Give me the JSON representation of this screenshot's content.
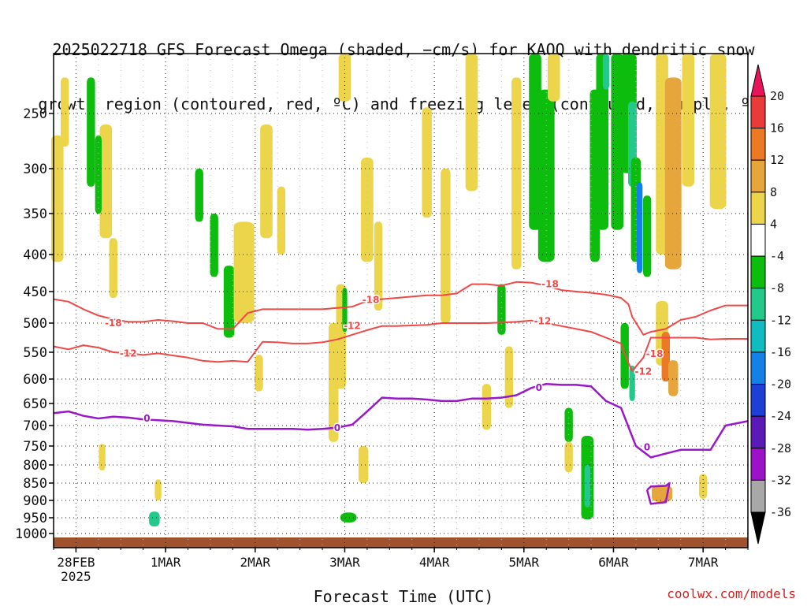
{
  "title": {
    "line1": "2025022718 GFS Forecast Omega (shaded, −cm/s) for KAQQ with dendritic snow",
    "line2": "growth region (contoured, red, ºC) and freezing level (contoured, purple, ºC)"
  },
  "watermark": "coolwx.com/models",
  "chart_data": {
    "type": "heatmap",
    "xlabel": "Forecast Time (UTC)",
    "ylabel": "",
    "x_ticks": [
      {
        "label": "28FEB",
        "sub": "2025",
        "hours": 6
      },
      {
        "label": "1MAR",
        "sub": "",
        "hours": 30
      },
      {
        "label": "2MAR",
        "sub": "",
        "hours": 54
      },
      {
        "label": "3MAR",
        "sub": "",
        "hours": 78
      },
      {
        "label": "4MAR",
        "sub": "",
        "hours": 102
      },
      {
        "label": "5MAR",
        "sub": "",
        "hours": 126
      },
      {
        "label": "6MAR",
        "sub": "",
        "hours": 150
      },
      {
        "label": "7MAR",
        "sub": "",
        "hours": 174
      }
    ],
    "xlim_hours": [
      0,
      186
    ],
    "y_axis": "pressure (hPa), decreasing upward",
    "y_ticks": [
      250,
      300,
      350,
      400,
      450,
      500,
      550,
      600,
      650,
      700,
      750,
      800,
      850,
      900,
      950,
      1000
    ],
    "ylim": [
      1020,
      200
    ],
    "grid": true,
    "colorbar": {
      "labels": [
        20,
        16,
        12,
        8,
        4,
        -4,
        -8,
        -12,
        -16,
        -20,
        -24,
        -28,
        -32,
        -36
      ],
      "colors": [
        "#e8135a",
        "#e93b3a",
        "#ec7a25",
        "#e6a63c",
        "#ecd54a",
        "#ffffff",
        "#0dbd0d",
        "#23c98a",
        "#11bcc0",
        "#1580e8",
        "#1d3fd6",
        "#5b1ab8",
        "#9b12c8",
        "#a8a8a8",
        "#000000"
      ]
    },
    "omega_blobs": [
      {
        "t": 1,
        "p": 340,
        "dt": 1.5,
        "dp": 140,
        "v": 6
      },
      {
        "t": 3,
        "p": 250,
        "dt": 1,
        "dp": 60,
        "v": 5
      },
      {
        "t": 10,
        "p": 270,
        "dt": 1,
        "dp": 100,
        "v": -6
      },
      {
        "t": 14,
        "p": 320,
        "dt": 1.5,
        "dp": 120,
        "v": 5
      },
      {
        "t": 16,
        "p": 420,
        "dt": 1,
        "dp": 80,
        "v": 5
      },
      {
        "t": 12,
        "p": 310,
        "dt": 0.8,
        "dp": 80,
        "v": -8
      },
      {
        "t": 13,
        "p": 780,
        "dt": 0.8,
        "dp": 70,
        "v": 5
      },
      {
        "t": 27,
        "p": 955,
        "dt": 1.3,
        "dp": 45,
        "v": -12
      },
      {
        "t": 28,
        "p": 870,
        "dt": 0.8,
        "dp": 60,
        "v": 5
      },
      {
        "t": 39,
        "p": 330,
        "dt": 1,
        "dp": 60,
        "v": -6
      },
      {
        "t": 43,
        "p": 390,
        "dt": 1,
        "dp": 80,
        "v": -5
      },
      {
        "t": 47,
        "p": 470,
        "dt": 1.3,
        "dp": 110,
        "v": -7
      },
      {
        "t": 51,
        "p": 430,
        "dt": 2.5,
        "dp": 140,
        "v": 6
      },
      {
        "t": 57,
        "p": 320,
        "dt": 1.5,
        "dp": 120,
        "v": 5
      },
      {
        "t": 61,
        "p": 360,
        "dt": 1,
        "dp": 80,
        "v": 5
      },
      {
        "t": 55,
        "p": 590,
        "dt": 1,
        "dp": 70,
        "v": 5
      },
      {
        "t": 75,
        "p": 620,
        "dt": 1.2,
        "dp": 240,
        "v": 6
      },
      {
        "t": 77,
        "p": 530,
        "dt": 1.2,
        "dp": 180,
        "v": 5
      },
      {
        "t": 78,
        "p": 210,
        "dt": 1.5,
        "dp": 60,
        "v": 5
      },
      {
        "t": 78,
        "p": 480,
        "dt": 0.6,
        "dp": 70,
        "v": -8
      },
      {
        "t": 79,
        "p": 950,
        "dt": 2,
        "dp": 30,
        "v": -8
      },
      {
        "t": 84,
        "p": 350,
        "dt": 1.5,
        "dp": 120,
        "v": 5
      },
      {
        "t": 87,
        "p": 420,
        "dt": 1,
        "dp": 120,
        "v": 5
      },
      {
        "t": 83,
        "p": 800,
        "dt": 1.2,
        "dp": 100,
        "v": 5
      },
      {
        "t": 100,
        "p": 300,
        "dt": 1.2,
        "dp": 110,
        "v": 5
      },
      {
        "t": 105,
        "p": 400,
        "dt": 1.2,
        "dp": 200,
        "v": 5
      },
      {
        "t": 112,
        "p": 250,
        "dt": 1.5,
        "dp": 150,
        "v": 5
      },
      {
        "t": 116,
        "p": 660,
        "dt": 1.1,
        "dp": 100,
        "v": 5
      },
      {
        "t": 120,
        "p": 480,
        "dt": 1,
        "dp": 80,
        "v": -6
      },
      {
        "t": 122,
        "p": 600,
        "dt": 1,
        "dp": 120,
        "v": 5
      },
      {
        "t": 124,
        "p": 320,
        "dt": 1.2,
        "dp": 200,
        "v": 5
      },
      {
        "t": 129,
        "p": 280,
        "dt": 1.5,
        "dp": 180,
        "v": -8
      },
      {
        "t": 132,
        "p": 320,
        "dt": 2,
        "dp": 180,
        "v": -8
      },
      {
        "t": 134,
        "p": 200,
        "dt": 1.5,
        "dp": 80,
        "v": 5
      },
      {
        "t": 138,
        "p": 700,
        "dt": 1,
        "dp": 80,
        "v": -8
      },
      {
        "t": 138,
        "p": 780,
        "dt": 1,
        "dp": 80,
        "v": 5
      },
      {
        "t": 143,
        "p": 840,
        "dt": 1.5,
        "dp": 230,
        "v": -8
      },
      {
        "t": 143,
        "p": 860,
        "dt": 0.7,
        "dp": 120,
        "v": -12
      },
      {
        "t": 145,
        "p": 320,
        "dt": 1.2,
        "dp": 180,
        "v": -8
      },
      {
        "t": 147,
        "p": 260,
        "dt": 1.5,
        "dp": 220,
        "v": -8
      },
      {
        "t": 148,
        "p": 200,
        "dt": 0.8,
        "dp": 60,
        "v": -14
      },
      {
        "t": 151,
        "p": 280,
        "dt": 1.5,
        "dp": 180,
        "v": -8
      },
      {
        "t": 154,
        "p": 240,
        "dt": 2,
        "dp": 130,
        "v": -8
      },
      {
        "t": 155,
        "p": 280,
        "dt": 1,
        "dp": 80,
        "v": -12
      },
      {
        "t": 156,
        "p": 350,
        "dt": 1.2,
        "dp": 120,
        "v": -8
      },
      {
        "t": 157,
        "p": 370,
        "dt": 0.7,
        "dp": 110,
        "v": -18
      },
      {
        "t": 159,
        "p": 380,
        "dt": 1,
        "dp": 100,
        "v": -8
      },
      {
        "t": 153,
        "p": 560,
        "dt": 1,
        "dp": 120,
        "v": -8
      },
      {
        "t": 155,
        "p": 610,
        "dt": 0.7,
        "dp": 70,
        "v": -12
      },
      {
        "t": 163,
        "p": 300,
        "dt": 1.5,
        "dp": 200,
        "v": 6
      },
      {
        "t": 166,
        "p": 320,
        "dt": 2,
        "dp": 200,
        "v": 8
      },
      {
        "t": 170,
        "p": 260,
        "dt": 1.5,
        "dp": 120,
        "v": 6
      },
      {
        "t": 163,
        "p": 520,
        "dt": 1.5,
        "dp": 110,
        "v": 5
      },
      {
        "t": 164,
        "p": 560,
        "dt": 1,
        "dp": 90,
        "v": 15
      },
      {
        "t": 166,
        "p": 600,
        "dt": 1.2,
        "dp": 70,
        "v": 9
      },
      {
        "t": 163,
        "p": 880,
        "dt": 2.5,
        "dp": 50,
        "v": 8
      },
      {
        "t": 174,
        "p": 860,
        "dt": 1,
        "dp": 70,
        "v": 5
      },
      {
        "t": 178,
        "p": 270,
        "dt": 2,
        "dp": 150,
        "v": 5
      }
    ],
    "dgz_minus12": {
      "label": "-12",
      "t": [
        0,
        4,
        8,
        12,
        16,
        20,
        24,
        28,
        32,
        36,
        40,
        44,
        48,
        52,
        56,
        60,
        64,
        68,
        72,
        76,
        80,
        84,
        88,
        92,
        96,
        100,
        104,
        108,
        112,
        116,
        120,
        124,
        128,
        132,
        136,
        140,
        144,
        148,
        152,
        154,
        155,
        158,
        160,
        164,
        168,
        172,
        176,
        180,
        186
      ],
      "p": [
        540,
        545,
        538,
        542,
        550,
        552,
        555,
        552,
        556,
        560,
        566,
        568,
        566,
        568,
        532,
        533,
        535,
        535,
        533,
        528,
        520,
        512,
        505,
        505,
        504,
        503,
        500,
        500,
        500,
        500,
        499,
        498,
        496,
        500,
        505,
        510,
        515,
        525,
        535,
        570,
        585,
        560,
        525,
        525,
        525,
        525,
        528,
        527,
        527
      ]
    },
    "dgz_minus18": {
      "label": "-18",
      "t": [
        0,
        4,
        8,
        12,
        16,
        20,
        24,
        28,
        32,
        36,
        40,
        44,
        48,
        52,
        56,
        60,
        64,
        68,
        72,
        76,
        80,
        84,
        88,
        92,
        96,
        100,
        104,
        108,
        112,
        116,
        120,
        124,
        128,
        132,
        136,
        140,
        144,
        148,
        152,
        154,
        155,
        158,
        160,
        164,
        168,
        172,
        176,
        180,
        186
      ],
      "p": [
        462,
        466,
        478,
        488,
        494,
        498,
        498,
        495,
        497,
        500,
        500,
        510,
        510,
        484,
        478,
        478,
        478,
        478,
        478,
        476,
        474,
        465,
        462,
        460,
        458,
        456,
        456,
        453,
        440,
        440,
        442,
        437,
        438,
        442,
        448,
        450,
        452,
        455,
        460,
        470,
        490,
        520,
        515,
        510,
        495,
        490,
        480,
        472,
        472
      ]
    },
    "freezing_level": {
      "label": "0",
      "t": [
        0,
        4,
        8,
        12,
        16,
        20,
        24,
        28,
        32,
        36,
        40,
        44,
        48,
        52,
        56,
        60,
        64,
        68,
        72,
        76,
        80,
        84,
        88,
        92,
        96,
        100,
        104,
        108,
        112,
        116,
        120,
        124,
        128,
        132,
        136,
        140,
        144,
        148,
        152,
        156,
        160,
        164,
        168,
        172,
        176,
        180,
        186
      ],
      "p": [
        672,
        668,
        678,
        684,
        680,
        682,
        686,
        688,
        690,
        694,
        698,
        700,
        702,
        708,
        708,
        708,
        708,
        710,
        708,
        705,
        698,
        668,
        638,
        640,
        640,
        642,
        645,
        645,
        640,
        640,
        638,
        633,
        618,
        610,
        612,
        612,
        615,
        645,
        660,
        750,
        780,
        770,
        760,
        760,
        760,
        700,
        690
      ]
    },
    "freezing_level_lower_loop": {
      "t": [
        159,
        160,
        164,
        165,
        164,
        160,
        159
      ],
      "p": [
        870,
        860,
        858,
        850,
        905,
        910,
        870
      ]
    }
  },
  "labels": {
    "contour_12_values": [
      "-12",
      "-12",
      "-12",
      "-12",
      "-12"
    ],
    "contour_18_values": [
      "-18",
      "-18",
      "-18",
      "-18"
    ],
    "freezing_values": [
      "0",
      "0",
      "0",
      "0"
    ]
  }
}
